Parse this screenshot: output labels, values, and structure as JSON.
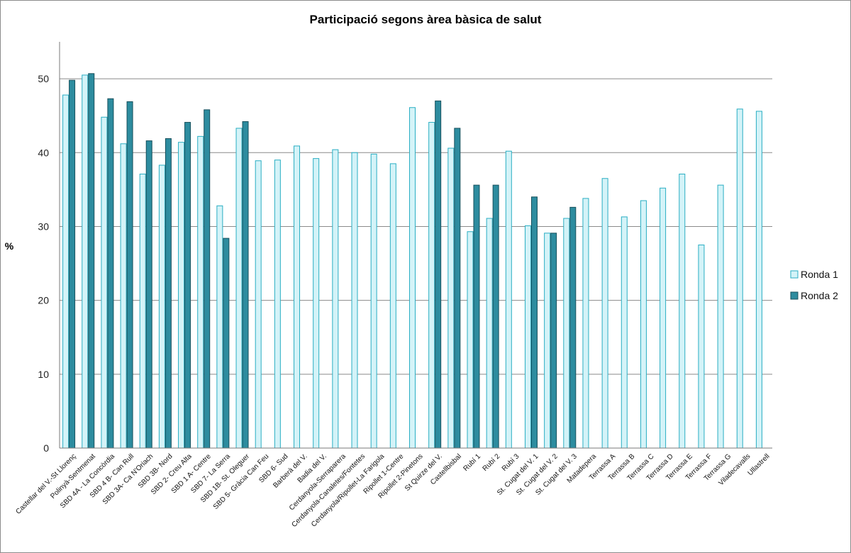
{
  "chart_data": {
    "type": "bar",
    "title": "Participació segons àrea bàsica de salut",
    "xlabel": "",
    "ylabel": "%",
    "ylim": [
      0,
      55
    ],
    "yticks": [
      0,
      10,
      20,
      30,
      40,
      50
    ],
    "grid": true,
    "legend_position": "right",
    "categories": [
      "Castellar del V.-St Llorenç",
      "Polinyà-Sentmenat",
      "SBD 4A - La Concòrdia",
      "SBD 4 B- Can Rull",
      "SBD 3A- Ca N'Oriach",
      "SBD 3B- Nord",
      "SBD 2- Creu Alta",
      "SBD 1 A- Centre",
      "SBD 7- La Serra",
      "SBD 1B- St. Oleguer",
      "SBD 5- Gràcia Can Feu",
      "SBD 6- Sud",
      "Barberà del V.",
      "Badia del V.",
      "Cerdanyola-Serraparera",
      "Cerdanyola-Canaletes/Fontetes",
      "Cerdanyola/Ripollet-La Farigola",
      "Ripollet 1-Centre",
      "Ripollet 2-Pinetons",
      "St Quirze del V.",
      "Castellbisbal",
      "Rubí 1",
      "Rubí 2",
      "Rubí 3",
      "St. Cugat del V. 1",
      "St. Cugat del V. 2",
      "St. Cugat del V. 3",
      "Matadepera",
      "Terrassa A",
      "Terrassa B",
      "Terrassa C",
      "Terrassa D",
      "Terrassa E",
      "Terrassa F",
      "Terrassa G",
      "Viladecavalls",
      "Ullastrell"
    ],
    "series": [
      {
        "name": "Ronda 1",
        "color": "#d4f3f8",
        "stroke": "#2aaec3",
        "values": [
          47.8,
          50.5,
          44.8,
          41.2,
          37.1,
          38.3,
          41.4,
          42.2,
          32.8,
          43.3,
          38.9,
          39.0,
          40.9,
          39.2,
          40.4,
          40.0,
          39.8,
          38.5,
          46.1,
          44.1,
          40.6,
          29.3,
          31.1,
          40.2,
          30.1,
          29.1,
          31.1,
          33.8,
          36.5,
          31.3,
          33.5,
          35.2,
          37.1,
          27.5,
          35.6,
          45.9,
          45.6
        ]
      },
      {
        "name": "Ronda 2",
        "color": "#2d8c9f",
        "stroke": "#17505c",
        "values": [
          49.8,
          50.7,
          47.3,
          46.9,
          41.6,
          41.9,
          44.1,
          45.8,
          28.4,
          44.2,
          null,
          null,
          null,
          null,
          null,
          null,
          null,
          null,
          null,
          47.0,
          43.3,
          35.6,
          35.6,
          null,
          34.0,
          29.1,
          32.6,
          null,
          null,
          null,
          null,
          null,
          null,
          null,
          null,
          null,
          null
        ]
      }
    ]
  }
}
